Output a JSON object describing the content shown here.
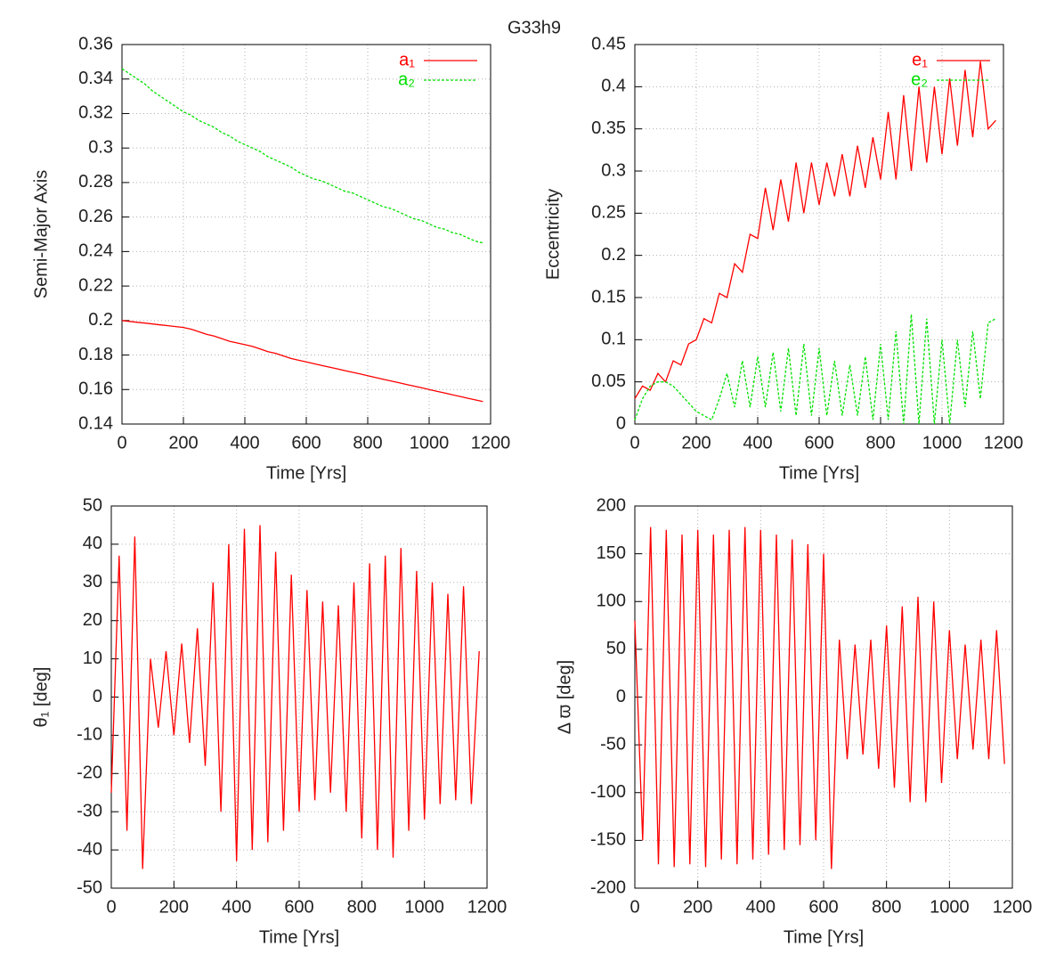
{
  "title": "G33h9",
  "chart_data": [
    {
      "type": "line",
      "ylabel": "Semi-Major Axis",
      "xlabel": "Time [Yrs]",
      "legend": "upper right",
      "grid": true,
      "xlim": [
        0,
        1200
      ],
      "xticks": [
        0,
        200,
        400,
        600,
        800,
        1000,
        1200
      ],
      "ylim": [
        0.14,
        0.36
      ],
      "yticks": [
        0.14,
        0.16,
        0.18,
        0.2,
        0.22,
        0.24,
        0.26,
        0.28,
        0.3,
        0.32,
        0.34,
        0.36
      ],
      "x": [
        0,
        25,
        50,
        75,
        100,
        125,
        150,
        175,
        200,
        225,
        250,
        275,
        300,
        325,
        350,
        375,
        400,
        425,
        450,
        475,
        500,
        525,
        550,
        575,
        600,
        625,
        650,
        675,
        700,
        725,
        750,
        775,
        800,
        825,
        850,
        875,
        900,
        925,
        950,
        975,
        1000,
        1025,
        1050,
        1075,
        1100,
        1125,
        1150,
        1175
      ],
      "series": [
        {
          "name": "a₁",
          "color": "#ff0000",
          "values": [
            0.2,
            0.1995,
            0.199,
            0.1985,
            0.198,
            0.1975,
            0.197,
            0.1965,
            0.196,
            0.195,
            0.1935,
            0.192,
            0.191,
            0.1895,
            0.188,
            0.187,
            0.186,
            0.185,
            0.1835,
            0.182,
            0.181,
            0.1795,
            0.178,
            0.177,
            0.176,
            0.175,
            0.174,
            0.173,
            0.172,
            0.171,
            0.17,
            0.169,
            0.168,
            0.167,
            0.166,
            0.165,
            0.164,
            0.163,
            0.162,
            0.161,
            0.16,
            0.159,
            0.158,
            0.157,
            0.156,
            0.155,
            0.154,
            0.153
          ]
        },
        {
          "name": "a₂",
          "color": "#00e000",
          "dashed": true,
          "values": [
            0.346,
            0.343,
            0.34,
            0.337,
            0.333,
            0.33,
            0.327,
            0.324,
            0.321,
            0.319,
            0.316,
            0.314,
            0.312,
            0.309,
            0.307,
            0.304,
            0.302,
            0.3,
            0.298,
            0.295,
            0.293,
            0.291,
            0.289,
            0.286,
            0.284,
            0.282,
            0.281,
            0.279,
            0.277,
            0.275,
            0.274,
            0.272,
            0.27,
            0.268,
            0.266,
            0.265,
            0.263,
            0.261,
            0.259,
            0.258,
            0.256,
            0.254,
            0.253,
            0.251,
            0.25,
            0.248,
            0.246,
            0.245
          ]
        }
      ]
    },
    {
      "type": "line",
      "ylabel": "Eccentricity",
      "xlabel": "Time [Yrs]",
      "legend": "upper right",
      "grid": true,
      "xlim": [
        0,
        1200
      ],
      "xticks": [
        0,
        200,
        400,
        600,
        800,
        1000,
        1200
      ],
      "ylim": [
        0,
        0.45
      ],
      "yticks": [
        0,
        0.05,
        0.1,
        0.15,
        0.2,
        0.25,
        0.3,
        0.35,
        0.4,
        0.45
      ],
      "x": [
        0,
        25,
        50,
        75,
        100,
        125,
        150,
        175,
        200,
        225,
        250,
        275,
        300,
        325,
        350,
        375,
        400,
        425,
        450,
        475,
        500,
        525,
        550,
        575,
        600,
        625,
        650,
        675,
        700,
        725,
        750,
        775,
        800,
        825,
        850,
        875,
        900,
        925,
        950,
        975,
        1000,
        1025,
        1050,
        1075,
        1100,
        1125,
        1150,
        1175
      ],
      "series": [
        {
          "name": "e₁",
          "color": "#ff0000",
          "values": [
            0.03,
            0.045,
            0.04,
            0.06,
            0.05,
            0.075,
            0.07,
            0.095,
            0.1,
            0.125,
            0.12,
            0.155,
            0.15,
            0.19,
            0.18,
            0.225,
            0.22,
            0.28,
            0.23,
            0.29,
            0.24,
            0.31,
            0.25,
            0.31,
            0.26,
            0.31,
            0.27,
            0.32,
            0.27,
            0.33,
            0.28,
            0.34,
            0.29,
            0.37,
            0.29,
            0.39,
            0.3,
            0.4,
            0.31,
            0.4,
            0.32,
            0.41,
            0.33,
            0.42,
            0.34,
            0.43,
            0.35,
            0.36
          ]
        },
        {
          "name": "e₂",
          "color": "#00e000",
          "dashed": true,
          "values": [
            0.005,
            0.03,
            0.045,
            0.05,
            0.05,
            0.045,
            0.035,
            0.025,
            0.015,
            0.01,
            0.005,
            0.03,
            0.06,
            0.02,
            0.075,
            0.02,
            0.08,
            0.02,
            0.085,
            0.015,
            0.09,
            0.01,
            0.095,
            0.01,
            0.09,
            0.01,
            0.075,
            0.01,
            0.07,
            0.01,
            0.08,
            0.005,
            0.095,
            0.005,
            0.11,
            0,
            0.13,
            0,
            0.125,
            0,
            0.1,
            0,
            0.1,
            0.02,
            0.11,
            0.03,
            0.12,
            0.125
          ]
        }
      ]
    },
    {
      "type": "line",
      "ylabel": "θ₁  [deg]",
      "xlabel": "Time [Yrs]",
      "grid": true,
      "xlim": [
        0,
        1200
      ],
      "xticks": [
        0,
        200,
        400,
        600,
        800,
        1000,
        1200
      ],
      "ylim": [
        -50,
        50
      ],
      "yticks": [
        -50,
        -40,
        -30,
        -20,
        -10,
        0,
        10,
        20,
        30,
        40,
        50
      ],
      "x": [
        0,
        25,
        50,
        75,
        100,
        125,
        150,
        175,
        200,
        225,
        250,
        275,
        300,
        325,
        350,
        375,
        400,
        425,
        450,
        475,
        500,
        525,
        550,
        575,
        600,
        625,
        650,
        675,
        700,
        725,
        750,
        775,
        800,
        825,
        850,
        875,
        900,
        925,
        950,
        975,
        1000,
        1025,
        1050,
        1075,
        1100,
        1125,
        1150,
        1175
      ],
      "series": [
        {
          "color": "#ff0000",
          "values": [
            -25,
            37,
            -35,
            42,
            -45,
            10,
            -8,
            12,
            -10,
            14,
            -12,
            18,
            -18,
            30,
            -30,
            40,
            -43,
            44,
            -40,
            45,
            -38,
            38,
            -35,
            32,
            -30,
            28,
            -27,
            25,
            -25,
            24,
            -30,
            30,
            -37,
            35,
            -40,
            37,
            -42,
            39,
            -35,
            33,
            -32,
            30,
            -28,
            27,
            -27,
            29,
            -28,
            12
          ]
        }
      ]
    },
    {
      "type": "line",
      "ylabel": "Δ ϖ  [deg]",
      "xlabel": "Time [Yrs]",
      "grid": true,
      "xlim": [
        0,
        1200
      ],
      "xticks": [
        0,
        200,
        400,
        600,
        800,
        1000,
        1200
      ],
      "ylim": [
        -200,
        200
      ],
      "yticks": [
        -200,
        -150,
        -100,
        -50,
        0,
        50,
        100,
        150,
        200
      ],
      "x": [
        0,
        25,
        50,
        75,
        100,
        125,
        150,
        175,
        200,
        225,
        250,
        275,
        300,
        325,
        350,
        375,
        400,
        425,
        450,
        475,
        500,
        525,
        550,
        575,
        600,
        625,
        650,
        675,
        700,
        725,
        750,
        775,
        800,
        825,
        850,
        875,
        900,
        925,
        950,
        975,
        1000,
        1025,
        1050,
        1075,
        1100,
        1125,
        1150,
        1175
      ],
      "series": [
        {
          "color": "#ff0000",
          "values": [
            80,
            -150,
            178,
            -175,
            175,
            -178,
            170,
            -175,
            175,
            -178,
            170,
            -170,
            175,
            -175,
            178,
            -170,
            175,
            -165,
            170,
            -160,
            165,
            -155,
            160,
            -150,
            150,
            -180,
            60,
            -65,
            55,
            -60,
            60,
            -75,
            75,
            -95,
            95,
            -110,
            105,
            -110,
            100,
            -90,
            70,
            -65,
            55,
            -55,
            60,
            -65,
            70,
            -70
          ]
        }
      ]
    }
  ]
}
